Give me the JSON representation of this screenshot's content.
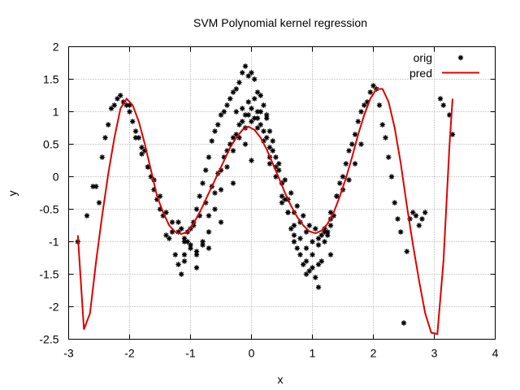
{
  "chart_data": {
    "type": "scatter",
    "title": "SVM Polynomial kernel regression",
    "xlabel": "x",
    "ylabel": "y",
    "xlim": [
      -3,
      4
    ],
    "ylim": [
      -2.5,
      2
    ],
    "xticks": [
      "-3",
      "-2",
      "-1",
      "0",
      "1",
      "2",
      "3",
      "4"
    ],
    "yticks": [
      "-2.5",
      "-2",
      "-1.5",
      "-1",
      "-0.5",
      "0",
      "0.5",
      "1",
      "1.5",
      "2"
    ],
    "grid": true,
    "legend_position": "top-right",
    "series": [
      {
        "name": "orig",
        "kind": "points",
        "marker": "star",
        "color": "#000000",
        "x": [
          -2.85,
          -2.7,
          -2.6,
          -2.55,
          -2.5,
          -2.45,
          -2.4,
          -2.35,
          -2.3,
          -2.25,
          -2.2,
          -2.15,
          -2.1,
          -2.05,
          -2.0,
          -1.95,
          -1.9,
          -1.85,
          -1.8,
          -1.75,
          -1.7,
          -1.65,
          -1.6,
          -1.55,
          -1.5,
          -1.45,
          -1.4,
          -1.35,
          -1.3,
          -1.25,
          -1.2,
          -1.15,
          -1.1,
          -1.05,
          -1.0,
          -0.95,
          -0.9,
          -0.85,
          -0.8,
          -0.75,
          -0.7,
          -0.65,
          -0.6,
          -0.55,
          -0.5,
          -0.45,
          -0.4,
          -0.35,
          -0.3,
          -0.25,
          -0.2,
          -0.15,
          -0.1,
          -0.05,
          0.0,
          0.05,
          0.1,
          0.15,
          0.2,
          0.25,
          0.3,
          0.35,
          0.4,
          0.45,
          0.5,
          0.55,
          0.6,
          0.65,
          0.7,
          0.75,
          0.8,
          0.85,
          0.9,
          0.95,
          1.0,
          1.05,
          1.1,
          1.15,
          1.2,
          1.25,
          1.3,
          1.35,
          1.4,
          1.45,
          1.5,
          1.55,
          1.6,
          1.65,
          1.7,
          1.75,
          1.8,
          1.85,
          1.9,
          1.95,
          2.0,
          2.05,
          2.1,
          2.15,
          2.2,
          2.25,
          2.3,
          2.35,
          2.4,
          2.45,
          2.5,
          2.55,
          2.6,
          2.65,
          2.7,
          2.75,
          2.8,
          2.85,
          3.1,
          3.15,
          3.25,
          3.3,
          -2.0,
          -1.9,
          -1.8,
          -1.7,
          -1.6,
          -1.5,
          -1.4,
          -1.3,
          -1.2,
          -1.1,
          -1.0,
          -0.9,
          -0.8,
          -0.7,
          -0.6,
          -0.5,
          -0.4,
          -0.3,
          -0.2,
          -0.1,
          0.0,
          0.1,
          0.2,
          0.3,
          0.4,
          0.5,
          0.6,
          0.7,
          0.8,
          0.9,
          1.0,
          1.1,
          1.2,
          1.3,
          1.4,
          1.5,
          1.6,
          1.7,
          1.8,
          -1.15,
          -1.05,
          -0.95,
          -0.85,
          -0.75,
          -0.65,
          -0.55,
          -0.45,
          -0.35,
          -0.25,
          -0.15,
          -0.05,
          0.05,
          0.15,
          0.25,
          0.35,
          0.45,
          0.55,
          0.65,
          0.75,
          0.85,
          0.95,
          1.05,
          1.15,
          1.25,
          -1.2,
          -1.1,
          -1.0,
          -0.9,
          -0.8,
          -0.7,
          -0.6,
          -0.5,
          -0.4,
          -0.3,
          -0.2,
          -0.1,
          0.0,
          0.1,
          0.2,
          0.3,
          0.4,
          0.5,
          0.6,
          0.7,
          0.8,
          0.9,
          1.0,
          1.1,
          1.2,
          1.3,
          -1.1,
          -0.9,
          -0.7,
          -0.5,
          -0.3,
          -0.1,
          0.1,
          0.3,
          0.5,
          0.7,
          0.9,
          1.1,
          1.3,
          -0.05,
          0.05,
          -0.15,
          0.15,
          0.0,
          -0.25,
          0.25
        ],
        "y": [
          -1.0,
          -0.6,
          -0.15,
          -0.15,
          -0.4,
          0.3,
          0.6,
          0.8,
          1.05,
          1.1,
          1.2,
          1.25,
          1.15,
          1.1,
          1.0,
          0.85,
          0.7,
          0.6,
          0.35,
          0.4,
          0.15,
          0.0,
          -0.2,
          -0.35,
          -0.5,
          -0.6,
          -0.9,
          -0.95,
          -0.85,
          -1.2,
          -1.35,
          -1.5,
          -1.2,
          -1.0,
          -0.8,
          -0.7,
          -0.5,
          -0.3,
          -0.1,
          0.1,
          0.3,
          0.55,
          0.7,
          0.8,
          0.95,
          1.0,
          1.1,
          1.2,
          1.3,
          1.35,
          1.45,
          1.6,
          1.7,
          1.55,
          1.6,
          1.5,
          1.3,
          1.25,
          1.1,
          0.9,
          0.7,
          0.55,
          0.3,
          0.1,
          -0.1,
          -0.35,
          -0.55,
          -0.8,
          -0.9,
          -1.1,
          -1.2,
          -1.35,
          -1.5,
          -1.45,
          -1.4,
          -1.55,
          -1.7,
          -1.3,
          -1.0,
          -0.85,
          -0.75,
          -0.6,
          -0.3,
          -0.1,
          0.0,
          0.2,
          0.4,
          0.5,
          0.65,
          0.85,
          1.0,
          1.1,
          1.15,
          1.3,
          1.4,
          1.35,
          1.1,
          0.8,
          0.6,
          0.3,
          0.0,
          -0.4,
          -0.65,
          -0.85,
          -2.25,
          -1.15,
          -0.65,
          -0.55,
          -0.6,
          -0.75,
          -0.65,
          -0.55,
          1.2,
          1.1,
          0.95,
          0.65,
          1.1,
          0.6,
          0.45,
          0.15,
          -0.05,
          -0.3,
          -0.55,
          -0.7,
          -0.85,
          -1.0,
          -1.1,
          -1.15,
          -1.0,
          -0.6,
          -0.25,
          0.1,
          0.4,
          0.6,
          0.8,
          0.95,
          1.05,
          0.9,
          0.7,
          0.45,
          0.15,
          -0.1,
          -0.35,
          -0.55,
          -0.7,
          -0.85,
          -1.0,
          -0.95,
          -0.8,
          -0.55,
          -0.3,
          -0.2,
          -0.05,
          0.2,
          0.5,
          -0.8,
          -0.85,
          -0.75,
          -0.6,
          -0.4,
          -0.15,
          0.05,
          0.3,
          0.5,
          0.65,
          0.85,
          0.95,
          0.9,
          0.8,
          0.6,
          0.4,
          0.2,
          -0.05,
          -0.25,
          -0.45,
          -0.6,
          -0.75,
          -0.8,
          -0.9,
          -0.9,
          -0.7,
          -0.95,
          -1.05,
          -1.2,
          -1.05,
          -0.85,
          -0.5,
          -0.2,
          0.15,
          0.4,
          0.6,
          0.75,
          0.85,
          0.75,
          0.55,
          0.3,
          0.0,
          -0.3,
          -0.55,
          -0.75,
          -0.95,
          -1.1,
          -1.2,
          -1.05,
          -0.85,
          -0.65,
          -1.3,
          -1.4,
          -1.1,
          -0.7,
          -0.1,
          0.5,
          1.0,
          0.2,
          -0.4,
          -1.0,
          -1.3,
          -1.35,
          -1.2,
          1.15,
          1.2,
          1.05,
          1.0,
          0.25,
          1.0,
          0.95
        ]
      },
      {
        "name": "pred",
        "kind": "line",
        "color": "#dd0000",
        "x": [
          -2.85,
          -2.75,
          -2.65,
          -2.55,
          -2.45,
          -2.35,
          -2.25,
          -2.15,
          -2.05,
          -1.95,
          -1.85,
          -1.75,
          -1.65,
          -1.55,
          -1.45,
          -1.35,
          -1.25,
          -1.15,
          -1.05,
          -0.95,
          -0.85,
          -0.75,
          -0.65,
          -0.55,
          -0.45,
          -0.35,
          -0.25,
          -0.15,
          -0.05,
          0.05,
          0.15,
          0.25,
          0.35,
          0.45,
          0.55,
          0.65,
          0.75,
          0.85,
          0.95,
          1.05,
          1.15,
          1.25,
          1.35,
          1.45,
          1.55,
          1.65,
          1.75,
          1.85,
          1.95,
          2.05,
          2.15,
          2.25,
          2.35,
          2.45,
          2.55,
          2.65,
          2.75,
          2.85,
          2.95,
          3.05,
          3.15,
          3.25,
          3.3
        ],
        "y": [
          -0.9,
          -2.35,
          -2.1,
          -1.3,
          -0.6,
          0.05,
          0.6,
          1.05,
          1.2,
          1.1,
          0.85,
          0.5,
          0.1,
          -0.3,
          -0.55,
          -0.75,
          -0.85,
          -0.88,
          -0.85,
          -0.72,
          -0.55,
          -0.35,
          -0.15,
          0.05,
          0.25,
          0.45,
          0.6,
          0.72,
          0.77,
          0.72,
          0.6,
          0.42,
          0.2,
          -0.02,
          -0.25,
          -0.45,
          -0.62,
          -0.75,
          -0.84,
          -0.87,
          -0.83,
          -0.72,
          -0.55,
          -0.3,
          -0.02,
          0.3,
          0.65,
          0.95,
          1.2,
          1.35,
          1.35,
          1.15,
          0.75,
          0.2,
          -0.45,
          -1.05,
          -1.6,
          -2.1,
          -2.4,
          -2.42,
          -1.3,
          0.5,
          1.2
        ]
      }
    ]
  }
}
